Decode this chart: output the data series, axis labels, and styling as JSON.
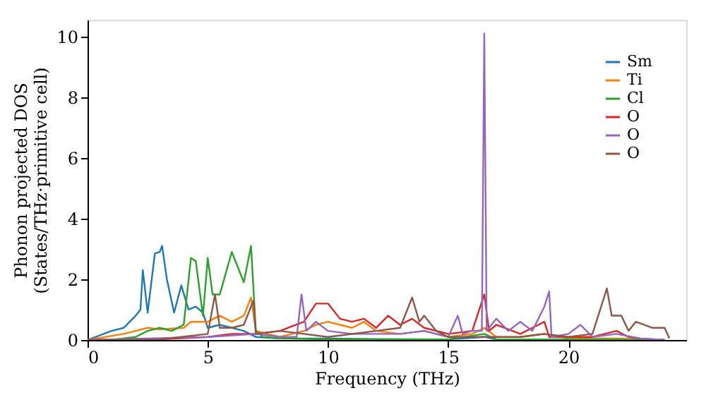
{
  "chart_data": {
    "type": "line",
    "xlabel": "Frequency (THz)",
    "ylabel": "Phonon projected DOS\n(States/THz·primitive cell)",
    "xlim": [
      0,
      24.9
    ],
    "ylim": [
      0,
      10.55
    ],
    "xticks": [
      0,
      5,
      10,
      15,
      20
    ],
    "yticks": [
      0,
      2,
      4,
      6,
      8,
      10
    ],
    "grid": false,
    "legend": "top right",
    "line_style": "solid",
    "marker": "none",
    "series": [
      {
        "name": "Sm",
        "color": "#1f77b4",
        "x": [
          0,
          1,
          1.5,
          2,
          2.2,
          2.3,
          2.5,
          2.8,
          3.0,
          3.1,
          3.3,
          3.6,
          3.9,
          4.2,
          4.5,
          4.8,
          5,
          5.5,
          6,
          6.5,
          7,
          8,
          10,
          12,
          15,
          16.5,
          17,
          20
        ],
        "values": [
          0,
          0.3,
          0.4,
          0.8,
          1.0,
          2.3,
          0.9,
          2.85,
          2.9,
          3.1,
          2.0,
          0.9,
          1.8,
          1.0,
          1.1,
          0.9,
          0.4,
          0.5,
          0.4,
          0.3,
          0.1,
          0.05,
          0.05,
          0.03,
          0.02,
          0.1,
          0.02,
          0.02
        ]
      },
      {
        "name": "Ti",
        "color": "#ff7f0e",
        "x": [
          0,
          1.5,
          2,
          2.5,
          3,
          4,
          4.3,
          5,
          5.5,
          6,
          6.5,
          6.8,
          7,
          7.5,
          8,
          9,
          9.5,
          10,
          10.5,
          11,
          11.5,
          12,
          13,
          14,
          15,
          16,
          16.5,
          17,
          18,
          19,
          20,
          22,
          24
        ],
        "values": [
          0,
          0.2,
          0.3,
          0.4,
          0.35,
          0.4,
          0.6,
          0.6,
          0.8,
          0.6,
          0.8,
          1.4,
          0.3,
          0.2,
          0.1,
          0.3,
          0.5,
          0.6,
          0.5,
          0.4,
          0.6,
          0.3,
          0.2,
          0.3,
          0.1,
          0.2,
          0.4,
          0.1,
          0.1,
          0.2,
          0.05,
          0.05,
          0
        ]
      },
      {
        "name": "Cl",
        "color": "#2ca02c",
        "x": [
          0,
          1,
          2,
          2.5,
          3,
          3.5,
          4,
          4.3,
          4.5,
          4.8,
          5,
          5.2,
          5.5,
          6,
          6.5,
          6.8,
          7,
          7.3,
          8,
          10,
          15,
          16.5,
          17,
          20,
          24
        ],
        "values": [
          0,
          0,
          0.1,
          0.3,
          0.4,
          0.3,
          0.5,
          2.7,
          2.6,
          0.8,
          2.7,
          1.5,
          1.5,
          2.9,
          1.9,
          3.1,
          0.3,
          0.1,
          0.05,
          0.02,
          0.02,
          0.2,
          0.02,
          0.02,
          0
        ]
      },
      {
        "name": "O",
        "color": "#d62728",
        "x": [
          0,
          3,
          5,
          6,
          7,
          8,
          9,
          9.5,
          10,
          10.5,
          11,
          11.5,
          12,
          12.5,
          13,
          13.5,
          14,
          15,
          16,
          16.5,
          16.7,
          17,
          18,
          19,
          19.2,
          20,
          21,
          22,
          22.5,
          23,
          24
        ],
        "values": [
          0,
          0.02,
          0.1,
          0.2,
          0.2,
          0.3,
          0.6,
          1.2,
          1.2,
          0.7,
          0.6,
          0.7,
          0.4,
          0.8,
          0.5,
          0.7,
          0.4,
          0.2,
          0.3,
          1.5,
          0.3,
          0.5,
          0.2,
          0.6,
          0.1,
          0.1,
          0.1,
          0.3,
          0.1,
          0.05,
          0
        ]
      },
      {
        "name": "O",
        "color": "#9467bd",
        "x": [
          0,
          5,
          7,
          8,
          8.7,
          8.9,
          9.1,
          9.5,
          10,
          11,
          12,
          13,
          14,
          15,
          15.4,
          15.6,
          16,
          16.4,
          16.5,
          16.6,
          17,
          17.5,
          18,
          18.5,
          19,
          19.2,
          19.3,
          20,
          20.5,
          21,
          22,
          23,
          24
        ],
        "values": [
          0,
          0.1,
          0.2,
          0.1,
          0.1,
          1.5,
          0.3,
          0.6,
          0.3,
          0.2,
          0.2,
          0.2,
          0.3,
          0.1,
          0.8,
          0.2,
          0.3,
          0.3,
          10.1,
          0.3,
          0.7,
          0.3,
          0.6,
          0.3,
          1.1,
          1.6,
          0.1,
          0.2,
          0.5,
          0.1,
          0.2,
          0.05,
          0
        ]
      },
      {
        "name": "O",
        "color": "#8c564b",
        "x": [
          0,
          3,
          5,
          5.3,
          5.5,
          6,
          6.5,
          6.9,
          7,
          8,
          9,
          10,
          12,
          13,
          13.5,
          13.8,
          14,
          14.5,
          15,
          16,
          17,
          18,
          19,
          20,
          21,
          21.6,
          21.8,
          22.2,
          22.5,
          22.8,
          23.5,
          24,
          24.2
        ],
        "values": [
          0,
          0.02,
          0.2,
          1.5,
          0.4,
          0.4,
          0.5,
          1.3,
          0.2,
          0.3,
          0.2,
          0.1,
          0.3,
          0.4,
          1.4,
          0.6,
          0.8,
          0.3,
          0.1,
          0.1,
          0.1,
          0.1,
          0.2,
          0.1,
          0.2,
          1.7,
          0.8,
          0.8,
          0.3,
          0.6,
          0.4,
          0.4,
          0.05
        ]
      }
    ]
  }
}
